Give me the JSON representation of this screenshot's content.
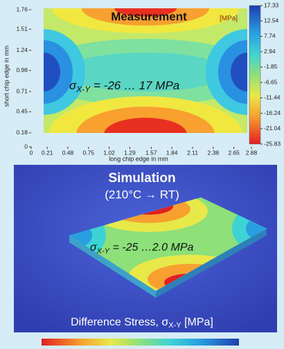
{
  "chart_data": {
    "type": "contour",
    "title": "Measurement",
    "colorbar_label": "[MPa]",
    "xlabel": "long chip edge in mm",
    "ylabel": "short chip edge in mm",
    "annotation": {
      "symbol": "σ",
      "subscript": "X-Y",
      "text": " = -26 … 17 MPa"
    },
    "xlim": [
      0,
      2.88
    ],
    "xticks": [
      0,
      0.21,
      0.48,
      0.75,
      1.02,
      1.29,
      1.57,
      1.84,
      2.11,
      2.38,
      2.65,
      2.88
    ],
    "ylim": [
      0,
      1.76
    ],
    "yticks": [
      0,
      0.18,
      0.45,
      0.71,
      0.98,
      1.24,
      1.51,
      1.76
    ],
    "clim": [
      -25.83,
      17.33
    ],
    "cticks": [
      17.33,
      12.54,
      7.74,
      2.94,
      -1.85,
      -6.65,
      -11.44,
      -16.24,
      -21.04,
      -25.83
    ]
  },
  "simulation": {
    "title": "Simulation",
    "subtitle": "(210°C → RT)",
    "annotation": {
      "symbol": "σ",
      "subscript": "X-Y",
      "text": " = -25 …2.0 MPa"
    },
    "caption": {
      "text": "Difference Stress, ",
      "symbol": "σ",
      "subscript": "X-Y",
      "unit": " [MPa]"
    }
  }
}
